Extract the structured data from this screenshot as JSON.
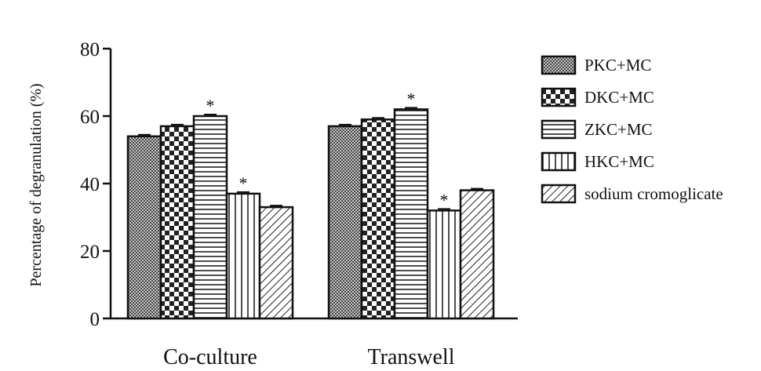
{
  "chart_data": {
    "type": "bar",
    "title": "",
    "xlabel": "",
    "ylabel": "Percentage of degranulation (%)",
    "ylim": [
      0,
      80
    ],
    "yticks": [
      "0",
      "20",
      "40",
      "60",
      "80"
    ],
    "categories": [
      "Co-culture",
      "Transwell"
    ],
    "series": [
      {
        "name": "PKC+MC",
        "values": [
          54,
          57
        ],
        "pattern": "fine-crosshatch"
      },
      {
        "name": "DKC+MC",
        "values": [
          57,
          59
        ],
        "pattern": "checkerboard"
      },
      {
        "name": "ZKC+MC",
        "values": [
          60,
          62
        ],
        "pattern": "horizontal-lines"
      },
      {
        "name": "HKC+MC",
        "values": [
          37,
          32
        ],
        "pattern": "vertical-lines"
      },
      {
        "name": "sodium cromoglicate",
        "values": [
          33,
          38
        ],
        "pattern": "diagonal-lines"
      }
    ],
    "annotations": [
      {
        "series": "ZKC+MC",
        "category": "Co-culture",
        "text": "*"
      },
      {
        "series": "HKC+MC",
        "category": "Co-culture",
        "text": "*"
      },
      {
        "series": "ZKC+MC",
        "category": "Transwell",
        "text": "*"
      },
      {
        "series": "HKC+MC",
        "category": "Transwell",
        "text": "*"
      }
    ],
    "legend": "right",
    "grid": false
  }
}
